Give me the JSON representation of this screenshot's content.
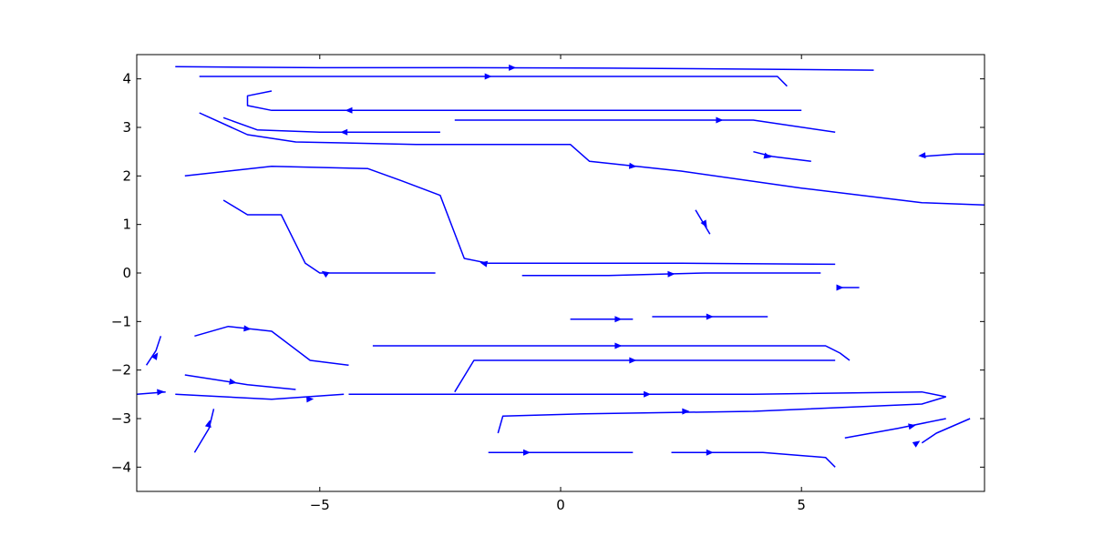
{
  "chart_data": {
    "type": "streamline",
    "title": "",
    "xlabel": "",
    "ylabel": "",
    "xlim": [
      -8.8,
      8.8
    ],
    "ylim": [
      -4.5,
      4.5
    ],
    "x_ticks": [
      -5,
      0,
      5
    ],
    "y_ticks": [
      4,
      3,
      2,
      1,
      0,
      -1,
      -2,
      -3,
      -4
    ],
    "x_tick_labels": [
      "−5",
      "0",
      "5"
    ],
    "y_tick_labels": [
      "4",
      "3",
      "2",
      "1",
      "0",
      "−1",
      "−2",
      "−3",
      "−4"
    ],
    "grid": false,
    "legend": "none",
    "line_color": "#0000ff",
    "streamlines": [
      {
        "points": [
          [
            -8.0,
            4.25
          ],
          [
            -5.0,
            4.23
          ],
          [
            -2.0,
            4.23
          ],
          [
            1.0,
            4.22
          ],
          [
            4.0,
            4.2
          ],
          [
            6.5,
            4.18
          ]
        ],
        "arrow_at": [
          -1.0,
          4.23
        ],
        "arrow_dir": 1
      },
      {
        "points": [
          [
            -7.5,
            4.05
          ],
          [
            -4.0,
            4.05
          ],
          [
            0.0,
            4.05
          ],
          [
            4.5,
            4.05
          ],
          [
            4.7,
            3.85
          ]
        ],
        "arrow_at": [
          -1.5,
          4.05
        ],
        "arrow_dir": 1
      },
      {
        "points": [
          [
            -6.0,
            3.75
          ],
          [
            -6.5,
            3.65
          ],
          [
            -6.5,
            3.45
          ],
          [
            -6.0,
            3.35
          ],
          [
            -2.0,
            3.35
          ],
          [
            3.0,
            3.35
          ],
          [
            5.0,
            3.35
          ]
        ],
        "arrow_at": [
          -4.4,
          3.35
        ],
        "arrow_dir": -1
      },
      {
        "points": [
          [
            5.7,
            2.9
          ],
          [
            4.0,
            3.15
          ],
          [
            1.0,
            3.15
          ],
          [
            -2.2,
            3.15
          ]
        ],
        "arrow_at": [
          3.3,
          3.15
        ],
        "arrow_dir": -1
      },
      {
        "points": [
          [
            -7.0,
            3.2
          ],
          [
            -6.3,
            2.95
          ],
          [
            -5.0,
            2.9
          ],
          [
            -2.5,
            2.9
          ]
        ],
        "arrow_at": [
          -4.5,
          2.9
        ],
        "arrow_dir": -1
      },
      {
        "points": [
          [
            -7.5,
            3.3
          ],
          [
            -6.5,
            2.85
          ],
          [
            -5.5,
            2.7
          ],
          [
            -3.0,
            2.65
          ],
          [
            0.2,
            2.65
          ],
          [
            0.6,
            2.3
          ],
          [
            2.5,
            2.1
          ],
          [
            5.0,
            1.75
          ],
          [
            7.5,
            1.45
          ],
          [
            8.8,
            1.4
          ]
        ],
        "arrow_at": [
          1.5,
          2.2
        ],
        "arrow_dir": 1
      },
      {
        "points": [
          [
            -7.8,
            2.0
          ],
          [
            -6.0,
            2.2
          ],
          [
            -4.0,
            2.15
          ],
          [
            -3.3,
            1.9
          ],
          [
            -2.5,
            1.6
          ],
          [
            -2.0,
            0.3
          ],
          [
            -1.5,
            0.2
          ],
          [
            0.0,
            0.2
          ],
          [
            2.5,
            0.2
          ],
          [
            5.7,
            0.18
          ]
        ],
        "arrow_at": [
          -1.6,
          0.2
        ],
        "arrow_dir": -1
      },
      {
        "points": [
          [
            5.4,
            0.0
          ],
          [
            3.0,
            0.0
          ],
          [
            1.0,
            -0.05
          ],
          [
            -0.8,
            -0.05
          ]
        ],
        "arrow_at": [
          2.3,
          -0.02
        ],
        "arrow_dir": -1
      },
      {
        "points": [
          [
            -7.0,
            1.5
          ],
          [
            -6.5,
            1.2
          ],
          [
            -5.8,
            1.2
          ],
          [
            -5.3,
            0.2
          ],
          [
            -5.0,
            0.0
          ],
          [
            -4.0,
            0.0
          ],
          [
            -2.6,
            0.0
          ]
        ],
        "arrow_at": [
          -4.9,
          0.0
        ],
        "arrow_dir": -1
      },
      {
        "points": [
          [
            -3.9,
            -1.5
          ],
          [
            0.0,
            -1.5
          ],
          [
            3.0,
            -1.5
          ],
          [
            5.5,
            -1.5
          ],
          [
            5.8,
            -1.65
          ],
          [
            6.0,
            -1.8
          ]
        ],
        "arrow_at": [
          1.2,
          -1.5
        ],
        "arrow_dir": 1
      },
      {
        "points": [
          [
            -2.2,
            -2.45
          ],
          [
            -1.8,
            -1.8
          ],
          [
            0.0,
            -1.8
          ],
          [
            3.0,
            -1.8
          ],
          [
            5.7,
            -1.8
          ]
        ],
        "arrow_at": [
          1.5,
          -1.8
        ],
        "arrow_dir": 1
      },
      {
        "points": [
          [
            -4.4,
            -2.5
          ],
          [
            0.0,
            -2.5
          ],
          [
            4.0,
            -2.5
          ],
          [
            7.5,
            -2.45
          ],
          [
            8.0,
            -2.55
          ]
        ],
        "arrow_at": [
          1.8,
          -2.5
        ],
        "arrow_dir": 1
      },
      {
        "points": [
          [
            -8.0,
            -2.5
          ],
          [
            -6.0,
            -2.6
          ],
          [
            -4.5,
            -2.5
          ]
        ],
        "arrow_at": [
          -5.2,
          -2.6
        ],
        "arrow_dir": 1
      },
      {
        "points": [
          [
            -1.3,
            -3.3
          ],
          [
            -1.2,
            -2.95
          ],
          [
            0.5,
            -2.9
          ],
          [
            4.0,
            -2.85
          ],
          [
            7.5,
            -2.7
          ],
          [
            8.0,
            -2.55
          ]
        ],
        "arrow_at": [
          2.6,
          -2.85
        ],
        "arrow_dir": 1
      },
      {
        "points": [
          [
            -1.5,
            -3.7
          ],
          [
            0.0,
            -3.7
          ],
          [
            1.5,
            -3.7
          ]
        ],
        "arrow_at": [
          -0.7,
          -3.7
        ],
        "arrow_dir": 1
      },
      {
        "points": [
          [
            2.3,
            -3.7
          ],
          [
            4.2,
            -3.7
          ],
          [
            5.5,
            -3.8
          ],
          [
            5.7,
            -4.0
          ]
        ],
        "arrow_at": [
          3.1,
          -3.7
        ],
        "arrow_dir": 1
      },
      {
        "points": [
          [
            1.9,
            -0.9
          ],
          [
            3.3,
            -0.9
          ],
          [
            4.3,
            -0.9
          ]
        ],
        "arrow_at": [
          3.1,
          -0.9
        ],
        "arrow_dir": 1
      },
      {
        "points": [
          [
            0.2,
            -0.95
          ],
          [
            1.5,
            -0.95
          ]
        ],
        "arrow_at": [
          1.2,
          -0.95
        ],
        "arrow_dir": 1
      },
      {
        "points": [
          [
            2.8,
            1.3
          ],
          [
            3.1,
            0.8
          ]
        ],
        "arrow_at": [
          3.0,
          1.0
        ],
        "arrow_dir": 1
      },
      {
        "points": [
          [
            -7.6,
            -1.3
          ],
          [
            -6.9,
            -1.1
          ],
          [
            -6.0,
            -1.2
          ],
          [
            -5.2,
            -1.8
          ],
          [
            -4.4,
            -1.9
          ]
        ],
        "arrow_at": [
          -6.5,
          -1.15
        ],
        "arrow_dir": 1
      },
      {
        "points": [
          [
            -7.8,
            -2.1
          ],
          [
            -6.5,
            -2.3
          ],
          [
            -5.5,
            -2.4
          ]
        ],
        "arrow_at": [
          -6.8,
          -2.25
        ],
        "arrow_dir": 1
      },
      {
        "points": [
          [
            -8.8,
            -2.5
          ],
          [
            -8.2,
            -2.45
          ]
        ],
        "arrow_at": [
          -8.3,
          -2.45
        ],
        "arrow_dir": 1
      },
      {
        "points": [
          [
            -7.6,
            -3.7
          ],
          [
            -7.3,
            -3.2
          ],
          [
            -7.2,
            -2.8
          ]
        ],
        "arrow_at": [
          -7.3,
          -3.1
        ],
        "arrow_dir": 1
      },
      {
        "points": [
          [
            -8.6,
            -1.9
          ],
          [
            -8.4,
            -1.6
          ],
          [
            -8.3,
            -1.3
          ]
        ],
        "arrow_at": [
          -8.4,
          -1.7
        ],
        "arrow_dir": 1
      },
      {
        "points": [
          [
            7.5,
            -3.5
          ],
          [
            7.8,
            -3.3
          ],
          [
            8.5,
            -3.0
          ]
        ],
        "arrow_at": [
          7.4,
          -3.5
        ],
        "arrow_dir": 1
      },
      {
        "points": [
          [
            5.9,
            -3.4
          ],
          [
            7.0,
            -3.2
          ],
          [
            8.0,
            -3.0
          ]
        ],
        "arrow_at": [
          7.3,
          -3.15
        ],
        "arrow_dir": 1
      },
      {
        "points": [
          [
            7.5,
            2.4
          ],
          [
            8.2,
            2.45
          ],
          [
            8.8,
            2.45
          ]
        ],
        "arrow_at": [
          7.5,
          2.42
        ],
        "arrow_dir": -1
      },
      {
        "points": [
          [
            5.2,
            2.3
          ],
          [
            4.4,
            2.4
          ],
          [
            4.0,
            2.5
          ]
        ],
        "arrow_at": [
          4.3,
          2.4
        ],
        "arrow_dir": -1
      },
      {
        "points": [
          [
            6.2,
            -0.3
          ],
          [
            5.8,
            -0.3
          ]
        ],
        "arrow_at": [
          5.8,
          -0.3
        ],
        "arrow_dir": -1
      }
    ]
  }
}
